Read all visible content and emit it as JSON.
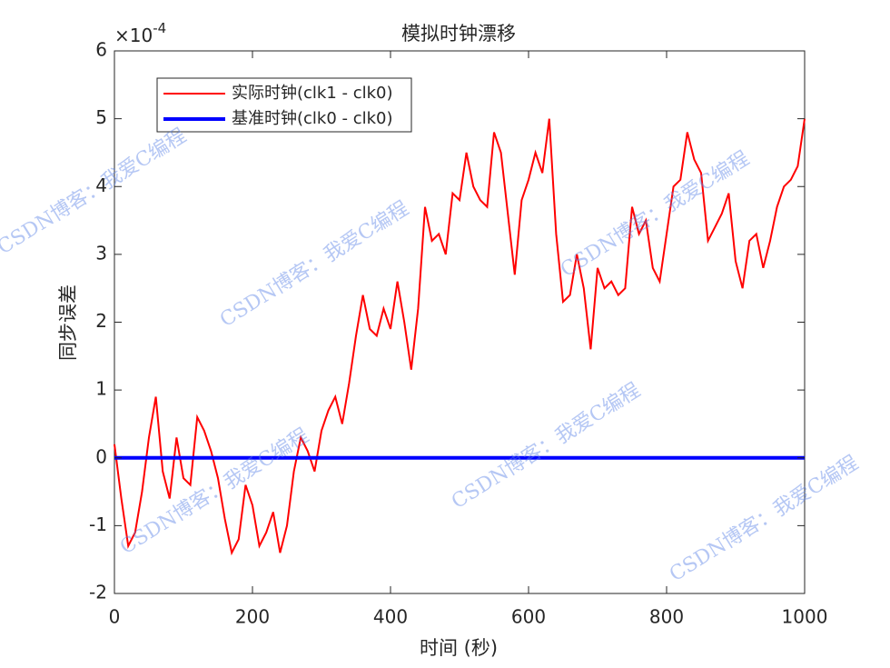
{
  "chart_data": {
    "type": "line",
    "title": "模拟时钟漂移",
    "xlabel": "时间 (秒)",
    "ylabel": "同步误差",
    "y_multiplier": {
      "base": "×10",
      "exponent": "-4"
    },
    "watermark": "CSDN博客：我爱C编程",
    "xlim": [
      0,
      1000
    ],
    "xticks": [
      0,
      200,
      400,
      600,
      800,
      1000
    ],
    "ylim": [
      -2,
      6
    ],
    "yticks": [
      -2,
      -1,
      0,
      1,
      2,
      3,
      4,
      5,
      6
    ],
    "grid": false,
    "legend": "upper left",
    "series": [
      {
        "name": "实际时钟(clk1 - clk0)",
        "color": "#ff0000",
        "x": [
          0,
          10,
          20,
          30,
          40,
          50,
          60,
          70,
          80,
          90,
          100,
          110,
          120,
          130,
          140,
          150,
          160,
          170,
          180,
          190,
          200,
          210,
          220,
          230,
          240,
          250,
          260,
          270,
          280,
          290,
          300,
          310,
          320,
          330,
          340,
          350,
          360,
          370,
          380,
          390,
          400,
          410,
          420,
          430,
          440,
          450,
          460,
          470,
          480,
          490,
          500,
          510,
          520,
          530,
          540,
          550,
          560,
          570,
          580,
          590,
          600,
          610,
          620,
          630,
          640,
          650,
          660,
          670,
          680,
          690,
          700,
          710,
          720,
          730,
          740,
          750,
          760,
          770,
          780,
          790,
          800,
          810,
          820,
          830,
          840,
          850,
          860,
          870,
          880,
          890,
          900,
          910,
          920,
          930,
          940,
          950,
          960,
          970,
          980,
          990,
          1000
        ],
        "values": [
          0.2,
          -0.6,
          -1.3,
          -1.1,
          -0.5,
          0.3,
          0.9,
          -0.2,
          -0.6,
          0.3,
          -0.3,
          -0.4,
          0.6,
          0.4,
          0.1,
          -0.3,
          -0.9,
          -1.4,
          -1.2,
          -0.4,
          -0.7,
          -1.3,
          -1.1,
          -0.8,
          -1.4,
          -1.0,
          -0.2,
          0.3,
          0.1,
          -0.2,
          0.4,
          0.7,
          0.9,
          0.5,
          1.1,
          1.8,
          2.4,
          1.9,
          1.8,
          2.2,
          1.9,
          2.6,
          2.0,
          1.3,
          2.2,
          3.7,
          3.2,
          3.3,
          3.0,
          3.9,
          3.8,
          4.5,
          4.0,
          3.8,
          3.7,
          4.8,
          4.5,
          3.6,
          2.7,
          3.8,
          4.1,
          4.5,
          4.2,
          5.0,
          3.3,
          2.3,
          2.4,
          3.0,
          2.5,
          1.6,
          2.8,
          2.5,
          2.6,
          2.4,
          2.5,
          3.7,
          3.3,
          3.5,
          2.8,
          2.6,
          3.3,
          4.0,
          4.1,
          4.8,
          4.4,
          4.2,
          3.2,
          3.4,
          3.6,
          3.9,
          2.9,
          2.5,
          3.2,
          3.3,
          2.8,
          3.2,
          3.7,
          4.0,
          4.1,
          4.3,
          5.0
        ]
      },
      {
        "name": "基准时钟(clk0 - clk0)",
        "color": "#0000ff",
        "x": [
          0,
          1000
        ],
        "values": [
          0,
          0
        ]
      }
    ]
  }
}
